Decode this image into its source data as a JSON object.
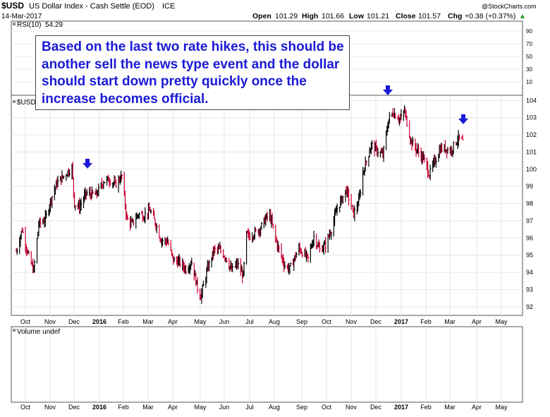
{
  "header": {
    "symbol": "$USD",
    "name": "US Dollar Index - Cash Settle (EOD)",
    "exchange": "ICE",
    "date": "14-Mar-2017",
    "open_label": "Open",
    "open": "101.29",
    "high_label": "High",
    "high": "101.66",
    "low_label": "Low",
    "low": "101.21",
    "close_label": "Close",
    "close": "101.57",
    "chg_label": "Chg",
    "chg": "+0.38 (+0.37%)",
    "chg_arrow": "▲",
    "watermark": "@StockCharts.com"
  },
  "rsi_panel": {
    "label": "RSI(10)",
    "value": "54.29",
    "ticks": [
      "90",
      "70",
      "50",
      "30",
      "10"
    ]
  },
  "price_panel": {
    "label": "$USD"
  },
  "volume_panel": {
    "label": "Volume undef"
  },
  "annotation": {
    "text": "Based on the last two rate hikes, this should be another sell the news type event and the dollar should start down pretty quickly once the increase becomes official."
  },
  "chart_data": {
    "type": "bar",
    "title": "$USD US Dollar Index - Cash Settle (EOD) ICE",
    "ylim": [
      91.5,
      104.3
    ],
    "y_ticks": [
      92,
      93,
      94,
      95,
      96,
      97,
      98,
      99,
      100,
      101,
      102,
      103,
      104
    ],
    "x_ticks": [
      {
        "label": "Oct",
        "bold": false
      },
      {
        "label": "Nov",
        "bold": false
      },
      {
        "label": "Dec",
        "bold": false
      },
      {
        "label": "2016",
        "bold": true
      },
      {
        "label": "Feb",
        "bold": false
      },
      {
        "label": "Mar",
        "bold": false
      },
      {
        "label": "Apr",
        "bold": false
      },
      {
        "label": "May",
        "bold": false
      },
      {
        "label": "Jun",
        "bold": false
      },
      {
        "label": "Jul",
        "bold": false
      },
      {
        "label": "Aug",
        "bold": false
      },
      {
        "label": "Sep",
        "bold": false
      },
      {
        "label": "Oct",
        "bold": false
      },
      {
        "label": "Nov",
        "bold": false
      },
      {
        "label": "Dec",
        "bold": false
      },
      {
        "label": "2017",
        "bold": true
      },
      {
        "label": "Feb",
        "bold": false
      },
      {
        "label": "Mar",
        "bold": false
      },
      {
        "label": "Apr",
        "bold": false
      },
      {
        "label": "May",
        "bold": false
      }
    ],
    "series": [
      {
        "x": [
          "2015-09-24",
          "2015-10-01",
          "2015-10-09",
          "2015-10-15",
          "2015-10-21",
          "2015-10-29",
          "2015-11-05",
          "2015-11-12",
          "2015-11-20",
          "2015-11-30",
          "2015-12-03",
          "2015-12-09",
          "2015-12-17",
          "2015-12-29",
          "2016-01-07",
          "2016-01-14",
          "2016-01-21",
          "2016-01-29",
          "2016-02-04",
          "2016-02-10",
          "2016-02-18",
          "2016-02-24",
          "2016-03-03",
          "2016-03-10",
          "2016-03-16",
          "2016-03-24",
          "2016-03-31",
          "2016-04-07",
          "2016-04-15",
          "2016-04-22",
          "2016-04-29",
          "2016-05-03",
          "2016-05-11",
          "2016-05-19",
          "2016-05-26",
          "2016-06-02",
          "2016-06-09",
          "2016-06-16",
          "2016-06-23",
          "2016-06-27",
          "2016-06-30",
          "2016-07-07",
          "2016-07-14",
          "2016-07-21",
          "2016-07-25",
          "2016-08-03",
          "2016-08-12",
          "2016-08-18",
          "2016-08-29",
          "2016-09-09",
          "2016-09-16",
          "2016-09-23",
          "2016-09-30",
          "2016-10-07",
          "2016-10-14",
          "2016-10-25",
          "2016-11-03",
          "2016-11-09",
          "2016-11-14",
          "2016-11-24",
          "2016-12-01",
          "2016-12-08",
          "2016-12-15",
          "2016-12-20",
          "2016-12-29",
          "2017-01-03",
          "2017-01-11",
          "2017-01-20",
          "2017-01-26",
          "2017-02-02",
          "2017-02-08",
          "2017-02-15",
          "2017-02-22",
          "2017-02-28",
          "2017-03-06",
          "2017-03-09",
          "2017-03-14"
        ],
        "y": [
          95.2,
          96.5,
          94.9,
          94.1,
          96.8,
          97.1,
          98.3,
          99.2,
          99.6,
          100.1,
          98.0,
          97.8,
          98.6,
          98.5,
          99.3,
          99.4,
          99.1,
          99.6,
          97.1,
          96.8,
          97.4,
          97.3,
          97.6,
          96.8,
          95.9,
          95.8,
          94.7,
          94.6,
          94.2,
          94.6,
          93.1,
          92.6,
          94.2,
          95.3,
          95.3,
          94.9,
          94.1,
          94.5,
          93.8,
          96.2,
          96.1,
          96.3,
          96.6,
          97.2,
          97.3,
          95.6,
          94.4,
          94.2,
          95.4,
          94.8,
          96.1,
          95.3,
          95.6,
          96.5,
          97.7,
          98.8,
          97.4,
          98.1,
          99.8,
          101.4,
          101.1,
          100.8,
          102.9,
          103.3,
          102.9,
          103.4,
          101.6,
          101.0,
          100.6,
          99.7,
          100.4,
          101.2,
          101.2,
          101.1,
          101.6,
          101.8,
          101.6
        ]
      }
    ],
    "annotations": [
      "down-arrow",
      "down-arrow",
      "down-arrow"
    ]
  }
}
